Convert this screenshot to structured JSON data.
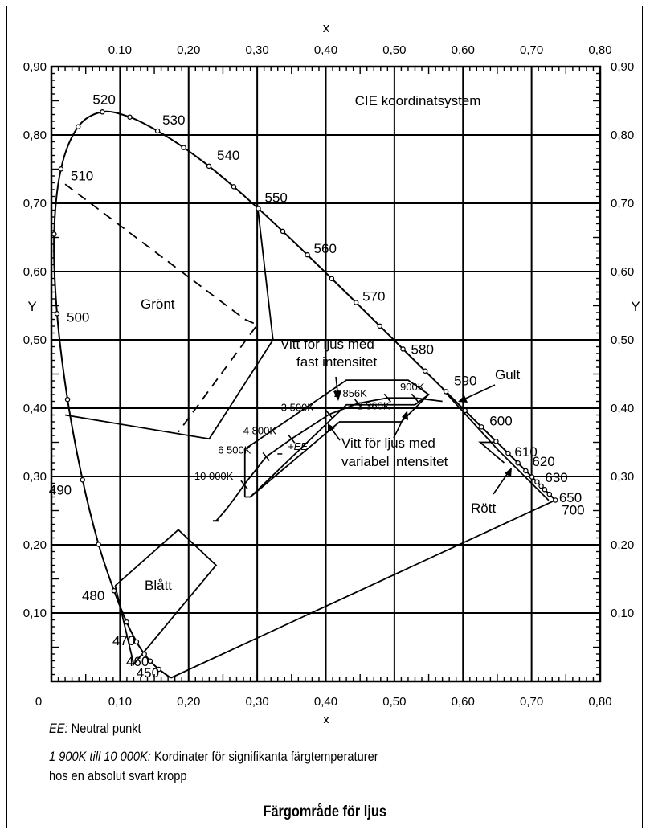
{
  "chart_data": {
    "type": "diagram",
    "title": "CIE koordinatsystem",
    "xlabel": "x",
    "ylabel": "Y",
    "xlim": [
      0,
      0.8
    ],
    "ylim": [
      0,
      0.9
    ],
    "x_ticks": [
      "0",
      "0,10",
      "0,20",
      "0,30",
      "0,40",
      "0,50",
      "0,60",
      "0,70",
      "0,80"
    ],
    "x_ticks_top": [
      "0,10",
      "0,20",
      "0,30",
      "0,40",
      "0,50",
      "0,60",
      "0,70",
      "0,80"
    ],
    "y_ticks": [
      "0,10",
      "0,20",
      "0,30",
      "0,40",
      "0,50",
      "0,60",
      "0,70",
      "0,80",
      "0,90"
    ],
    "grid": true,
    "spectral_locus": [
      {
        "nm": "450",
        "x": 0.1566,
        "y": 0.0177
      },
      {
        "nm": "460",
        "x": 0.144,
        "y": 0.0297
      },
      {
        "nm": "470",
        "x": 0.1241,
        "y": 0.0578
      },
      {
        "nm": "480",
        "x": 0.0913,
        "y": 0.1327
      },
      {
        "nm": "490",
        "x": 0.0454,
        "y": 0.295
      },
      {
        "nm": "500",
        "x": 0.0082,
        "y": 0.5384
      },
      {
        "nm": "510",
        "x": 0.0139,
        "y": 0.7502
      },
      {
        "nm": "520",
        "x": 0.0743,
        "y": 0.8338
      },
      {
        "nm": "530",
        "x": 0.1547,
        "y": 0.8059
      },
      {
        "nm": "540",
        "x": 0.2296,
        "y": 0.7543
      },
      {
        "nm": "550",
        "x": 0.3016,
        "y": 0.6923
      },
      {
        "nm": "560",
        "x": 0.3731,
        "y": 0.6245
      },
      {
        "nm": "570",
        "x": 0.4441,
        "y": 0.5547
      },
      {
        "nm": "580",
        "x": 0.5125,
        "y": 0.4866
      },
      {
        "nm": "590",
        "x": 0.5752,
        "y": 0.4242
      },
      {
        "nm": "600",
        "x": 0.627,
        "y": 0.3725
      },
      {
        "nm": "610",
        "x": 0.6658,
        "y": 0.334
      },
      {
        "nm": "620",
        "x": 0.6915,
        "y": 0.3083
      },
      {
        "nm": "630",
        "x": 0.7079,
        "y": 0.292
      },
      {
        "nm": "650",
        "x": 0.726,
        "y": 0.274
      },
      {
        "nm": "700",
        "x": 0.7347,
        "y": 0.2653
      }
    ],
    "planckian_locus": [
      {
        "label": "10 000K",
        "x": 0.281,
        "y": 0.288
      },
      {
        "label": "6 500K",
        "x": 0.313,
        "y": 0.329
      },
      {
        "label": "4 800K",
        "x": 0.35,
        "y": 0.355
      },
      {
        "label": "3 500K",
        "x": 0.405,
        "y": 0.391
      },
      {
        "label": "2 856K",
        "x": 0.447,
        "y": 0.407
      },
      {
        "label": "2 360K",
        "x": 0.49,
        "y": 0.415
      },
      {
        "label": "1 900K",
        "x": 0.53,
        "y": 0.415
      }
    ],
    "neutral_point": {
      "label": "+EE",
      "x": 0.333,
      "y": 0.333
    },
    "regions": [
      "Grönt",
      "Blått",
      "Gult",
      "Rött"
    ],
    "annotations": [
      "Vitt för ljus med",
      "fast intensitet",
      "Vitt för ljus med",
      "variabel intensitet"
    ],
    "note_900k": "900K"
  },
  "notes": {
    "ee_term": "EE:",
    "ee_text": " Neutral punkt",
    "temp_term": "1 900K till 10 000K:",
    "temp_text": " Kordinater för signifikanta färgtemperaturer",
    "temp_text2": "hos en absolut svart kropp"
  },
  "caption": "Färgområde för ljus"
}
